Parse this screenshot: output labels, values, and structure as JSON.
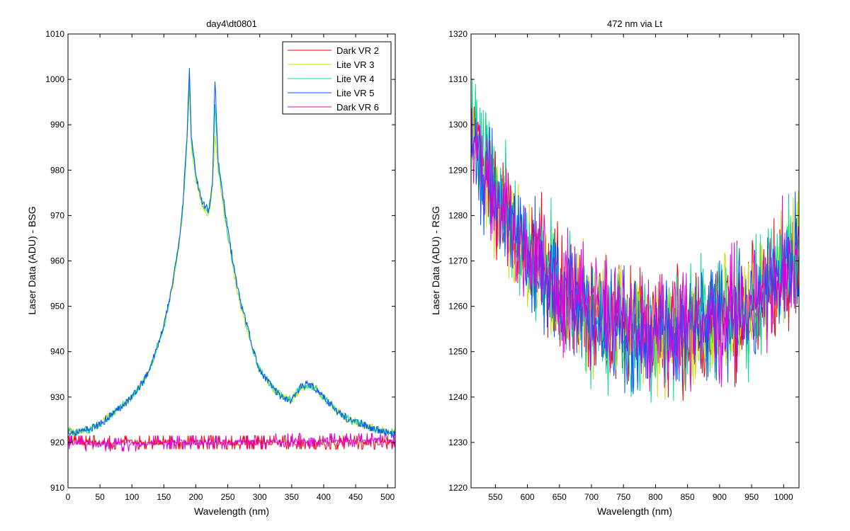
{
  "chart_data": [
    {
      "type": "line",
      "title": "day4\\dt0801",
      "xlabel": "Wavelength (nm)",
      "ylabel": "Laser Data (ADU) - BSG",
      "xlim": [
        0,
        512
      ],
      "ylim": [
        910,
        1010
      ],
      "xticks": [
        0,
        50,
        100,
        150,
        200,
        250,
        300,
        350,
        400,
        450,
        500
      ],
      "yticks": [
        910,
        920,
        930,
        940,
        950,
        960,
        970,
        980,
        990,
        1000,
        1010
      ],
      "legend": {
        "placement": "top-right"
      },
      "series": [
        {
          "name": "Dark VR 2",
          "color": "#ff0000",
          "x": [
            0,
            50,
            100,
            150,
            200,
            250,
            300,
            350,
            400,
            450,
            500,
            512
          ],
          "y": [
            920,
            920,
            920,
            920,
            920,
            920,
            920,
            920,
            920,
            920,
            920,
            920
          ]
        },
        {
          "name": "Lite VR 3",
          "color": "#ccdd00",
          "x": [
            0,
            10,
            25,
            50,
            75,
            100,
            125,
            150,
            165,
            175,
            180,
            186,
            190,
            193,
            200,
            210,
            220,
            226,
            230,
            235,
            240,
            250,
            260,
            270,
            280,
            290,
            300,
            320,
            340,
            350,
            360,
            370,
            380,
            390,
            400,
            420,
            440,
            460,
            480,
            500,
            512
          ],
          "y": [
            923,
            922,
            922.5,
            924,
            927,
            930,
            935,
            945,
            955,
            965,
            972,
            985,
            998,
            985,
            978,
            972,
            970,
            976,
            988,
            980,
            975,
            965,
            957,
            950,
            945,
            940,
            936,
            932,
            930,
            929.5,
            931,
            932.5,
            932.5,
            931.5,
            930,
            927,
            925,
            924,
            923,
            922.5,
            922
          ]
        },
        {
          "name": "Lite VR 4",
          "color": "#00e090",
          "x": [
            0,
            10,
            25,
            50,
            75,
            100,
            125,
            150,
            165,
            175,
            180,
            186,
            190,
            193,
            200,
            210,
            220,
            226,
            230,
            235,
            240,
            250,
            260,
            270,
            280,
            290,
            300,
            320,
            340,
            350,
            360,
            370,
            380,
            390,
            400,
            420,
            440,
            460,
            480,
            500,
            512
          ],
          "y": [
            922.5,
            922,
            922.5,
            924,
            927,
            930,
            935,
            945.5,
            956,
            966,
            972,
            986,
            1000,
            986,
            979,
            973,
            971,
            977,
            995,
            981,
            976,
            966,
            958,
            951,
            945.5,
            940,
            936,
            932,
            929.5,
            929.5,
            931.5,
            932.5,
            932.5,
            931.5,
            930,
            927,
            925,
            924,
            923,
            922,
            922
          ]
        },
        {
          "name": "Lite VR 5",
          "color": "#0055ff",
          "x": [
            0,
            10,
            25,
            50,
            75,
            100,
            125,
            150,
            165,
            175,
            180,
            186,
            190,
            193,
            200,
            210,
            220,
            226,
            230,
            235,
            240,
            250,
            260,
            270,
            280,
            290,
            300,
            320,
            340,
            350,
            360,
            370,
            380,
            390,
            400,
            420,
            440,
            460,
            480,
            500,
            512
          ],
          "y": [
            922.5,
            922,
            922.5,
            924,
            927,
            930,
            935,
            945.5,
            956,
            966,
            973,
            987,
            1002,
            987,
            979,
            973,
            971,
            977,
            1000,
            982,
            977,
            967,
            958,
            951,
            946,
            940,
            936,
            932,
            929.5,
            929.5,
            931.5,
            933,
            933,
            931.5,
            930,
            927,
            925,
            924,
            923,
            922,
            922
          ]
        },
        {
          "name": "Dark VR 6",
          "color": "#dd00dd",
          "x": [
            0,
            50,
            100,
            150,
            200,
            250,
            300,
            350,
            400,
            450,
            500,
            512
          ],
          "y": [
            920,
            919.5,
            919.5,
            920,
            920,
            920,
            920,
            920.5,
            920.5,
            920.5,
            920.5,
            920.5
          ]
        }
      ]
    },
    {
      "type": "line",
      "title": "472 nm via Lt",
      "xlabel": "Wavelength (nm)",
      "ylabel": "Laser Data (ADU) - RSG",
      "xlim": [
        512,
        1024
      ],
      "ylim": [
        1220,
        1320
      ],
      "xticks": [
        550,
        600,
        650,
        700,
        750,
        800,
        850,
        900,
        950,
        1000
      ],
      "yticks": [
        1220,
        1230,
        1240,
        1250,
        1260,
        1270,
        1280,
        1290,
        1300,
        1310,
        1320
      ],
      "noise_amplitude": 14,
      "series": [
        {
          "name": "",
          "color": "#ff0000",
          "x": [
            512,
            550,
            600,
            650,
            700,
            750,
            800,
            850,
            900,
            950,
            1000,
            1024
          ],
          "y": [
            1300,
            1285,
            1272,
            1264,
            1259,
            1256,
            1255,
            1255,
            1257,
            1260,
            1268,
            1272
          ]
        },
        {
          "name": "",
          "color": "#ccdd00",
          "x": [
            512,
            550,
            600,
            650,
            700,
            750,
            800,
            850,
            900,
            950,
            1000,
            1024
          ],
          "y": [
            1299,
            1284,
            1271,
            1264,
            1259,
            1256,
            1254,
            1255,
            1257,
            1261,
            1268,
            1273
          ]
        },
        {
          "name": "",
          "color": "#00e090",
          "x": [
            512,
            550,
            600,
            650,
            700,
            750,
            800,
            850,
            900,
            950,
            1000,
            1024
          ],
          "y": [
            1300,
            1286,
            1272,
            1265,
            1258,
            1255,
            1255,
            1256,
            1258,
            1261,
            1269,
            1273
          ]
        },
        {
          "name": "",
          "color": "#0055ff",
          "x": [
            512,
            550,
            600,
            650,
            700,
            750,
            800,
            850,
            900,
            950,
            1000,
            1024
          ],
          "y": [
            1298,
            1284,
            1271,
            1263,
            1258,
            1255,
            1254,
            1255,
            1257,
            1260,
            1267,
            1271
          ]
        },
        {
          "name": "",
          "color": "#dd00dd",
          "x": [
            512,
            550,
            600,
            650,
            700,
            750,
            800,
            850,
            900,
            950,
            1000,
            1024
          ],
          "y": [
            1299,
            1285,
            1272,
            1264,
            1259,
            1256,
            1255,
            1255,
            1257,
            1260,
            1268,
            1272
          ]
        }
      ]
    }
  ]
}
